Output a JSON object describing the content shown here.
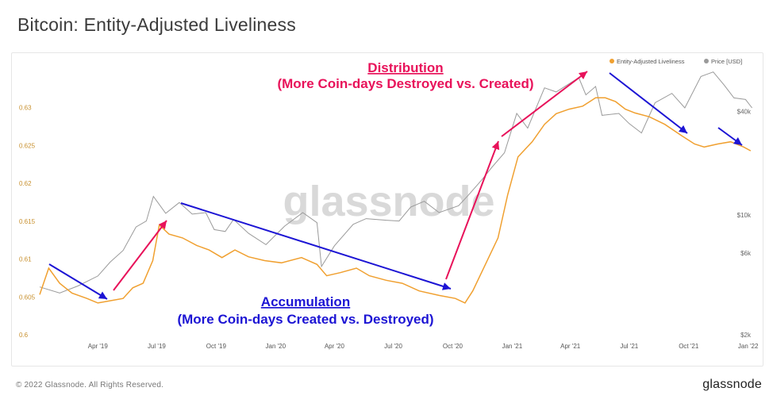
{
  "header": {
    "title": "Bitcoin: Entity-Adjusted Liveliness"
  },
  "footer": {
    "copyright": "© 2022 Glassnode. All Rights Reserved.",
    "logo_text": "glassnode"
  },
  "watermark": "glassnode",
  "colors": {
    "liveliness": "#f0a030",
    "price": "#9a9a9a",
    "distribution": "#e8125a",
    "accumulation": "#1c14d4",
    "left_axis": "#c8902e"
  },
  "annotations": {
    "distribution_title": "Distribution",
    "distribution_sub": "(More Coin-days Destroyed vs. Created)",
    "accumulation_title": "Accumulation",
    "accumulation_sub": "(More Coin-days Created vs. Destroyed)"
  },
  "chart_data": {
    "type": "line",
    "title": "Bitcoin: Entity-Adjusted Liveliness",
    "xlabel": "",
    "ylabel": "",
    "x_ticks": [
      "Apr '19",
      "Jul '19",
      "Oct '19",
      "Jan '20",
      "Apr '20",
      "Jul '20",
      "Oct '20",
      "Jan '21",
      "Apr '21",
      "Jul '21",
      "Oct '21",
      "Jan '22"
    ],
    "x_range": [
      "2019-01-01",
      "2022-01-10"
    ],
    "left_axis": {
      "ticks": [
        "0.6",
        "0.605",
        "0.61",
        "0.615",
        "0.62",
        "0.625",
        "0.63"
      ],
      "ylim": [
        0.6,
        0.635
      ]
    },
    "right_axis": {
      "scale": "log",
      "ticks": [
        "$2k",
        "$6k",
        "$10k",
        "$40k"
      ],
      "ylim": [
        2000,
        70000
      ]
    },
    "legend": {
      "position": "top-right",
      "items": [
        "Entity-Adjusted Liveliness",
        "Price [USD]"
      ]
    },
    "series": [
      {
        "name": "Entity-Adjusted Liveliness",
        "axis": "left",
        "points": [
          [
            "2019-01-01",
            0.6053
          ],
          [
            "2019-01-15",
            0.6088
          ],
          [
            "2019-02-01",
            0.6068
          ],
          [
            "2019-02-20",
            0.6055
          ],
          [
            "2019-03-15",
            0.6048
          ],
          [
            "2019-04-01",
            0.6042
          ],
          [
            "2019-04-20",
            0.6045
          ],
          [
            "2019-05-10",
            0.6048
          ],
          [
            "2019-05-25",
            0.6062
          ],
          [
            "2019-06-10",
            0.6068
          ],
          [
            "2019-06-25",
            0.6098
          ],
          [
            "2019-07-05",
            0.6145
          ],
          [
            "2019-07-20",
            0.6133
          ],
          [
            "2019-08-10",
            0.6128
          ],
          [
            "2019-09-01",
            0.6118
          ],
          [
            "2019-09-20",
            0.6112
          ],
          [
            "2019-10-10",
            0.6102
          ],
          [
            "2019-10-30",
            0.6112
          ],
          [
            "2019-11-20",
            0.6103
          ],
          [
            "2019-12-15",
            0.6098
          ],
          [
            "2020-01-10",
            0.6095
          ],
          [
            "2020-02-10",
            0.6102
          ],
          [
            "2020-03-05",
            0.6093
          ],
          [
            "2020-03-20",
            0.6078
          ],
          [
            "2020-04-10",
            0.6082
          ],
          [
            "2020-05-05",
            0.6088
          ],
          [
            "2020-05-25",
            0.6078
          ],
          [
            "2020-06-20",
            0.6072
          ],
          [
            "2020-07-15",
            0.6068
          ],
          [
            "2020-08-10",
            0.6058
          ],
          [
            "2020-09-10",
            0.6052
          ],
          [
            "2020-10-05",
            0.6048
          ],
          [
            "2020-10-20",
            0.6042
          ],
          [
            "2020-11-01",
            0.6058
          ],
          [
            "2020-11-20",
            0.6092
          ],
          [
            "2020-12-10",
            0.6128
          ],
          [
            "2020-12-25",
            0.6185
          ],
          [
            "2021-01-10",
            0.6235
          ],
          [
            "2021-02-01",
            0.6255
          ],
          [
            "2021-02-20",
            0.6278
          ],
          [
            "2021-03-10",
            0.6292
          ],
          [
            "2021-03-30",
            0.6298
          ],
          [
            "2021-04-20",
            0.6302
          ],
          [
            "2021-05-10",
            0.6313
          ],
          [
            "2021-05-25",
            0.6313
          ],
          [
            "2021-06-10",
            0.6308
          ],
          [
            "2021-06-25",
            0.6298
          ],
          [
            "2021-07-10",
            0.6293
          ],
          [
            "2021-08-01",
            0.6288
          ],
          [
            "2021-08-25",
            0.6278
          ],
          [
            "2021-09-20",
            0.6263
          ],
          [
            "2021-10-10",
            0.6252
          ],
          [
            "2021-10-25",
            0.6248
          ],
          [
            "2021-11-15",
            0.6252
          ],
          [
            "2021-12-05",
            0.6255
          ],
          [
            "2021-12-25",
            0.6248
          ],
          [
            "2022-01-05",
            0.6243
          ]
        ]
      },
      {
        "name": "Price [USD]",
        "axis": "right",
        "points": [
          [
            "2019-01-01",
            3800
          ],
          [
            "2019-02-01",
            3500
          ],
          [
            "2019-03-01",
            3850
          ],
          [
            "2019-04-01",
            4400
          ],
          [
            "2019-04-20",
            5300
          ],
          [
            "2019-05-10",
            6200
          ],
          [
            "2019-05-30",
            8500
          ],
          [
            "2019-06-15",
            9200
          ],
          [
            "2019-06-26",
            12800
          ],
          [
            "2019-07-15",
            10200
          ],
          [
            "2019-08-05",
            11800
          ],
          [
            "2019-08-25",
            10100
          ],
          [
            "2019-09-15",
            10300
          ],
          [
            "2019-09-28",
            8200
          ],
          [
            "2019-10-15",
            8000
          ],
          [
            "2019-10-28",
            9400
          ],
          [
            "2019-11-20",
            7800
          ],
          [
            "2019-12-17",
            6700
          ],
          [
            "2020-01-15",
            8600
          ],
          [
            "2020-02-12",
            10300
          ],
          [
            "2020-03-05",
            9000
          ],
          [
            "2020-03-12",
            5000
          ],
          [
            "2020-04-01",
            6600
          ],
          [
            "2020-04-30",
            8800
          ],
          [
            "2020-05-20",
            9500
          ],
          [
            "2020-06-20",
            9300
          ],
          [
            "2020-07-10",
            9200
          ],
          [
            "2020-07-28",
            11100
          ],
          [
            "2020-08-18",
            12000
          ],
          [
            "2020-09-10",
            10300
          ],
          [
            "2020-10-10",
            11300
          ],
          [
            "2020-10-25",
            13000
          ],
          [
            "2020-11-15",
            16000
          ],
          [
            "2020-12-01",
            19000
          ],
          [
            "2020-12-20",
            23000
          ],
          [
            "2021-01-08",
            39000
          ],
          [
            "2021-01-25",
            32000
          ],
          [
            "2021-02-20",
            55000
          ],
          [
            "2021-03-10",
            52000
          ],
          [
            "2021-04-14",
            63000
          ],
          [
            "2021-04-25",
            50000
          ],
          [
            "2021-05-10",
            56000
          ],
          [
            "2021-05-20",
            38000
          ],
          [
            "2021-06-15",
            39000
          ],
          [
            "2021-07-01",
            34000
          ],
          [
            "2021-07-20",
            30000
          ],
          [
            "2021-08-10",
            45000
          ],
          [
            "2021-09-05",
            51000
          ],
          [
            "2021-09-25",
            42000
          ],
          [
            "2021-10-20",
            64000
          ],
          [
            "2021-11-08",
            68000
          ],
          [
            "2021-11-25",
            57000
          ],
          [
            "2021-12-10",
            48000
          ],
          [
            "2021-12-28",
            47000
          ],
          [
            "2022-01-07",
            42000
          ]
        ]
      }
    ]
  }
}
